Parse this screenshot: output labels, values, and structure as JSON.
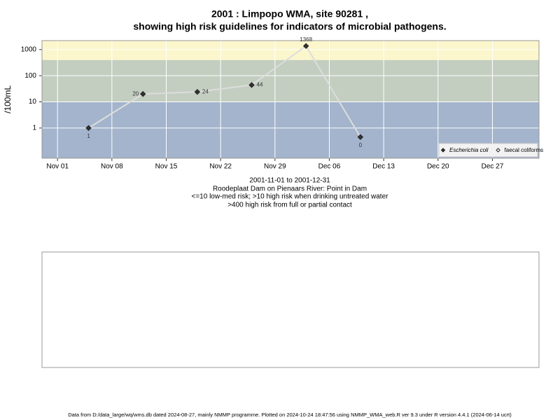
{
  "chart_data": {
    "type": "line",
    "title": [
      "2001 : Limpopo WMA, site 90281 ,",
      "showing high risk guidelines for indicators of microbial pathogens."
    ],
    "ylabel": "/100mL",
    "x": [
      "Nov 05",
      "Nov 12",
      "Nov 19",
      "Nov 26",
      "Dec 03",
      "Dec 10"
    ],
    "series": [
      {
        "name": "Escherichia coli",
        "color": "#333333",
        "line_color": "#dddddd",
        "values": [
          1,
          20,
          24,
          44,
          1368,
          0.45
        ],
        "value_labels": [
          "1",
          "20",
          "24",
          "44",
          "1368",
          "0"
        ]
      },
      {
        "name": "faecal coliforms",
        "color": "#ffffff",
        "values": [
          null,
          null,
          null,
          null,
          null,
          null
        ]
      }
    ],
    "xlim": [
      "Oct 30",
      "Jan 02"
    ],
    "xticks": [
      "Nov 01",
      "Nov 08",
      "Nov 15",
      "Nov 22",
      "Nov 29",
      "Dec 06",
      "Dec 13",
      "Dec 20",
      "Dec 27"
    ],
    "ylim": [
      0.07,
      2200
    ],
    "yticks": [
      1,
      10,
      100,
      1000
    ],
    "log_y": true,
    "grid": true,
    "band_edges": [
      10,
      400
    ],
    "band_colors": [
      "#a3b4cc",
      "#c3cec0",
      "#fbf6cc"
    ],
    "legend": "bottom-right",
    "notes": [
      "2001-11-01 to 2001-12-31",
      "Roodeplaat Dam on Pienaars River: Point in Dam",
      "<=10 low-med risk; >10 high risk when drinking untreated water",
      ">400 high risk from full or partial contact"
    ],
    "footer": "Data from D:/data_large/wq/wms.db dated 2024-08-27, mainly NMMP programme. Plotted on 2024-10-24 18:47:56 using NMMP_WMA_web.R ver 9.3 under R version 4.4.1 (2024-06-14 ucrt)"
  }
}
